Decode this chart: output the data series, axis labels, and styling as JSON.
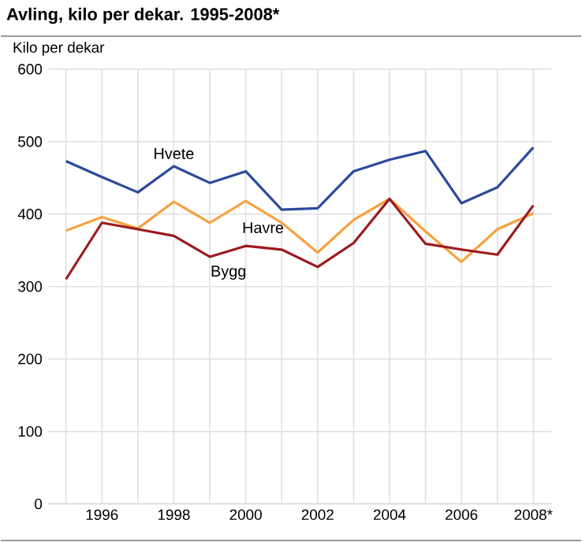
{
  "chart_data": {
    "type": "line",
    "title": "Avling, kilo per dekar. 1995-2008*",
    "ylabel": "Kilo per dekar",
    "x": [
      1995,
      1996,
      1997,
      1998,
      1999,
      2000,
      2001,
      2002,
      2003,
      2004,
      2005,
      2006,
      2007,
      2008
    ],
    "series": [
      {
        "name": "Hvete",
        "color": "#2b4a9b",
        "values": [
          473,
          451,
          430,
          466,
          443,
          459,
          406,
          408,
          459,
          475,
          487,
          415,
          437,
          492
        ]
      },
      {
        "name": "Havre",
        "color": "#f7a040",
        "values": [
          377,
          396,
          380,
          417,
          388,
          418,
          388,
          347,
          392,
          421,
          376,
          334,
          379,
          401
        ]
      },
      {
        "name": "Bygg",
        "color": "#9b1b1f",
        "values": [
          310,
          388,
          379,
          370,
          341,
          356,
          351,
          327,
          360,
          421,
          359,
          351,
          344,
          412
        ]
      }
    ],
    "xlim": [
      1994.5,
      2008.5
    ],
    "xticks": [
      {
        "value": 1995,
        "label": null
      },
      1996,
      {
        "value": 1997,
        "label": null
      },
      1998,
      {
        "value": 1999,
        "label": null
      },
      2000,
      {
        "value": 2001,
        "label": null
      },
      2002,
      {
        "value": 2003,
        "label": null
      },
      2004,
      {
        "value": 2005,
        "label": null
      },
      2006,
      {
        "value": 2007,
        "label": null
      },
      {
        "value": 2008,
        "label": "2008*"
      }
    ],
    "ylim": [
      0,
      600
    ],
    "yticks": [
      0,
      100,
      200,
      300,
      400,
      500,
      600
    ],
    "grid": true,
    "marker": "none",
    "line_style": "solid"
  }
}
